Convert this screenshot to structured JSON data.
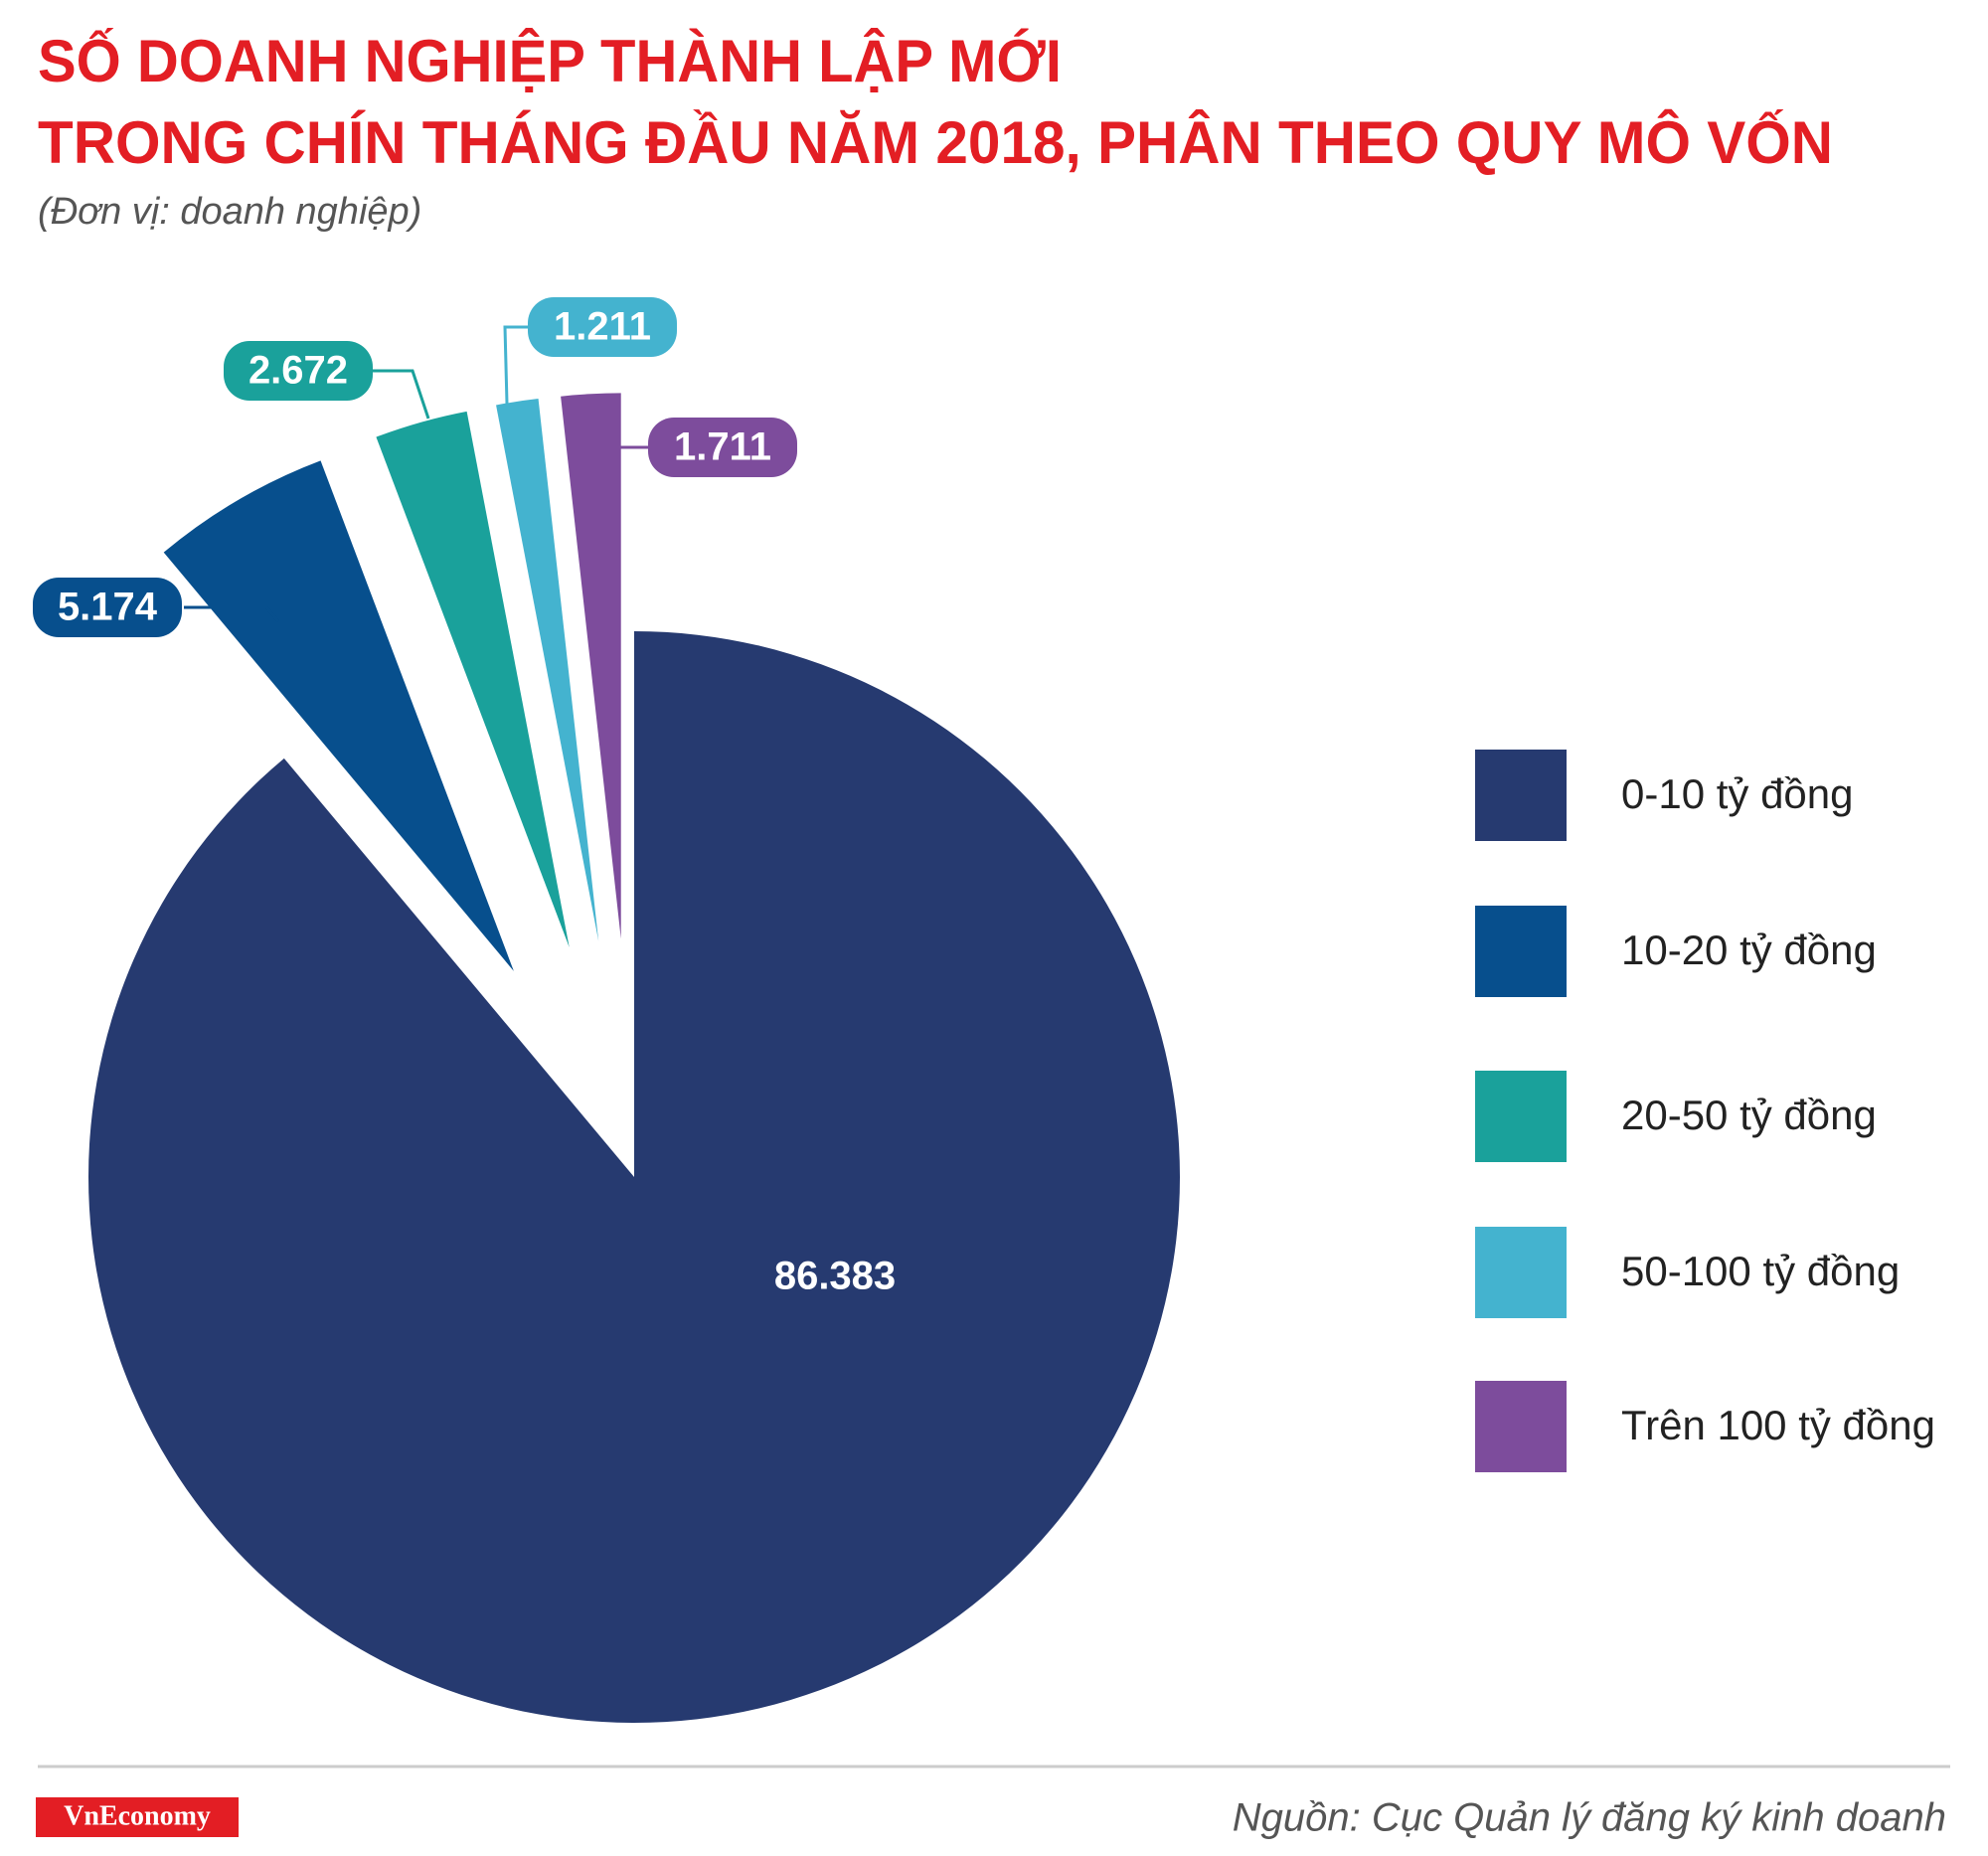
{
  "chart_data": {
    "type": "pie",
    "title": [
      "SỐ DOANH NGHIỆP THÀNH LẬP MỚI",
      "TRONG CHÍN THÁNG ĐẦU NĂM 2018, PHÂN THEO QUY MÔ VỐN"
    ],
    "subtitle": "(Đơn vị: doanh nghiệp)",
    "categories": [
      "0-10 tỷ đồng",
      "10-20 tỷ đồng",
      "20-50 tỷ đồng",
      "50-100 tỷ đồng",
      "Trên 100 tỷ đồng"
    ],
    "values": [
      86383,
      5174,
      2672,
      1211,
      1711
    ],
    "value_labels": [
      "86.383",
      "5.174",
      "2.672",
      "1.211",
      "1.711"
    ],
    "colors": [
      "#263a70",
      "#074f8d",
      "#1aa19b",
      "#44b3cf",
      "#7d4c9c"
    ],
    "legend": "right",
    "source": "Nguồn: Cục Quản lý đăng ký kinh doanh",
    "logo": "VnEconomy"
  }
}
